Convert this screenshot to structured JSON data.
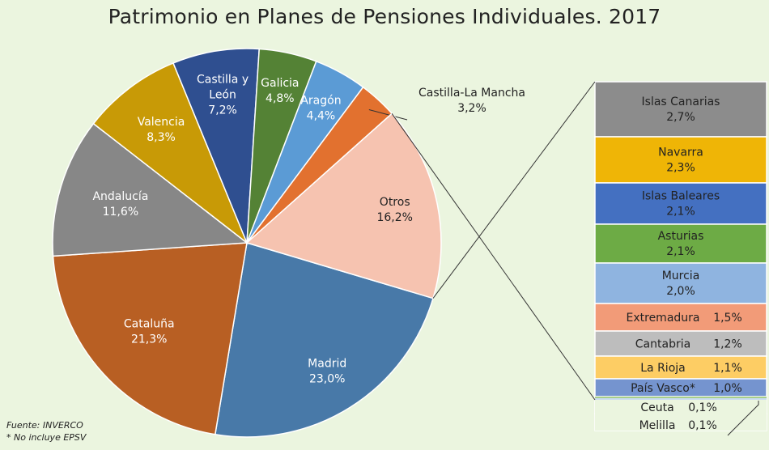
{
  "title": "Patrimonio en Planes de Pensiones Individuales. 2017",
  "source": "Fuente: INVERCO",
  "footnote": "* No incluye EPSV",
  "chart_data": {
    "type": "pie",
    "title": "Patrimonio en Planes de Pensiones Individuales. 2017",
    "slices": [
      {
        "label": "Madrid",
        "value": 23.0,
        "display": "23,0%",
        "color": "#4879a8",
        "text_color": "#ffffff"
      },
      {
        "label": "Cataluña",
        "value": 21.3,
        "display": "21,3%",
        "color": "#b85f23",
        "text_color": "#ffffff"
      },
      {
        "label": "Andalucía",
        "value": 11.6,
        "display": "11,6%",
        "color": "#878787",
        "text_color": "#ffffff"
      },
      {
        "label": "Valencia",
        "value": 8.3,
        "display": "8,3%",
        "color": "#c89a06",
        "text_color": "#ffffff"
      },
      {
        "label": "Castilla y León",
        "label_lines": [
          "Castilla y",
          "León"
        ],
        "value": 7.2,
        "display": "7,2%",
        "color": "#2f4f90",
        "text_color": "#ffffff"
      },
      {
        "label": "Galicia",
        "value": 4.8,
        "display": "4,8%",
        "color": "#548235",
        "text_color": "#ffffff"
      },
      {
        "label": "Aragón",
        "value": 4.4,
        "display": "4,4%",
        "color": "#5b9bd5",
        "text_color": "#ffffff"
      },
      {
        "label": "Castilla-La Mancha",
        "value": 3.2,
        "display": "3,2%",
        "color": "#e2712f",
        "text_color": "#222222"
      },
      {
        "label": "Otros",
        "value": 16.2,
        "display": "16,2%",
        "color": "#f6c3b0",
        "text_color": "#222222"
      }
    ],
    "breakdown": {
      "of": "Otros",
      "type": "stacked-bar",
      "items": [
        {
          "label": "Islas Canarias",
          "value": 2.7,
          "display": "2,7%",
          "color": "#8c8c8c",
          "text_color": "#222222"
        },
        {
          "label": "Navarra",
          "value": 2.3,
          "display": "2,3%",
          "color": "#efb506",
          "text_color": "#222222"
        },
        {
          "label": "Islas Baleares",
          "value": 2.1,
          "display": "2,1%",
          "color": "#4470c1",
          "text_color": "#222222"
        },
        {
          "label": "Asturias",
          "value": 2.1,
          "display": "2,1%",
          "color": "#6dab45",
          "text_color": "#222222"
        },
        {
          "label": "Murcia",
          "value": 2.0,
          "display": "2,0%",
          "color": "#8fb4e0",
          "text_color": "#222222"
        },
        {
          "label": "Extremadura",
          "value": 1.5,
          "display": "1,5%",
          "color": "#f29b78",
          "text_color": "#222222"
        },
        {
          "label": "Cantabria",
          "value": 1.2,
          "display": "1,2%",
          "color": "#bdbdbd",
          "text_color": "#222222"
        },
        {
          "label": "La Rioja",
          "value": 1.1,
          "display": "1,1%",
          "color": "#fdcd64",
          "text_color": "#222222"
        },
        {
          "label": "País Vasco*",
          "value": 1.0,
          "display": "1,0%",
          "color": "#7594cf",
          "text_color": "#222222"
        },
        {
          "label": "Ceuta",
          "value": 0.1,
          "display": "0,1%",
          "color": "#a8cf8a",
          "text_color": "#222222"
        },
        {
          "label": "Melilla",
          "value": 0.1,
          "display": "0,1%",
          "color": "#c9dcf0",
          "text_color": "#222222"
        }
      ]
    }
  }
}
